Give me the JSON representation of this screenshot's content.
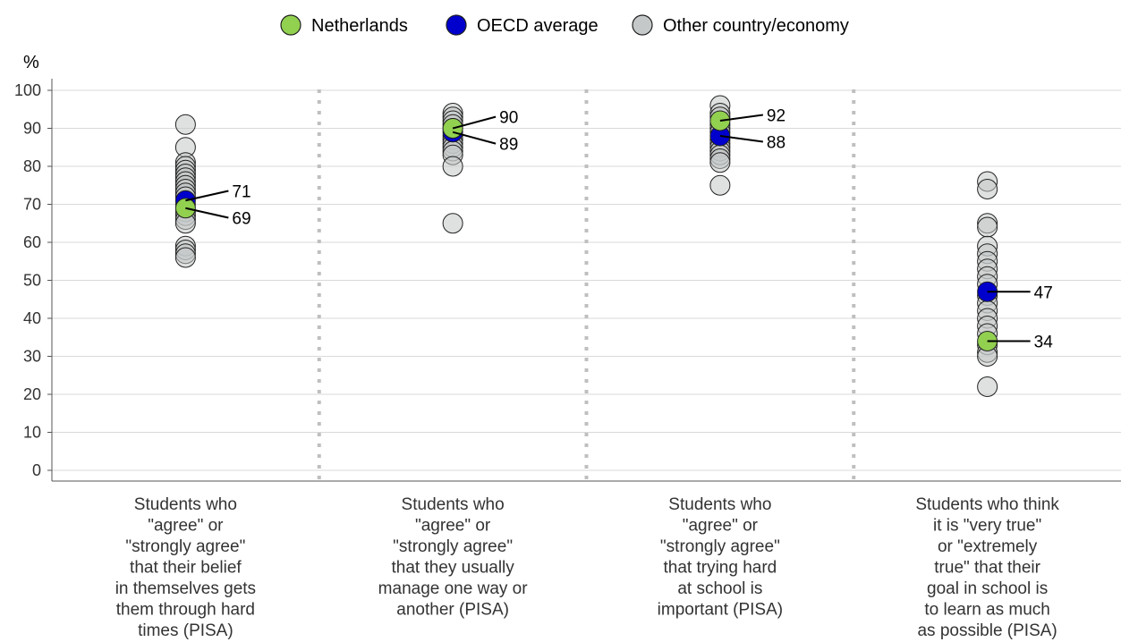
{
  "chart_data": {
    "type": "scatter",
    "y_unit_label": "%",
    "ylim": [
      0,
      100
    ],
    "yticks": [
      0,
      10,
      20,
      30,
      40,
      50,
      60,
      70,
      80,
      90,
      100
    ],
    "grid": true,
    "legend_position": "top-center",
    "legend": [
      {
        "label": "Netherlands",
        "color": "#92d050"
      },
      {
        "label": "OECD average",
        "color": "#0000cc"
      },
      {
        "label": "Other country/economy",
        "color": "#c4c8c8"
      }
    ],
    "categories": [
      {
        "label_lines": [
          "Students who",
          "\"agree\" or",
          "\"strongly agree\"",
          "that their belief",
          "in themselves gets",
          "them through hard",
          "times (PISA)"
        ],
        "netherlands": 69,
        "oecd_average": 71,
        "others": [
          91,
          85,
          81,
          80,
          79,
          78,
          77,
          76,
          75,
          74,
          73,
          72,
          70,
          68,
          67,
          66,
          65,
          59,
          58,
          57,
          56
        ]
      },
      {
        "label_lines": [
          "Students who",
          "\"agree\" or",
          "\"strongly agree\"",
          "that they usually",
          "manage one way or",
          "another (PISA)"
        ],
        "netherlands": 90,
        "oecd_average": 89,
        "others": [
          94,
          93,
          92,
          91,
          90,
          88,
          87,
          86,
          85,
          84,
          83,
          80,
          65
        ]
      },
      {
        "label_lines": [
          "Students who",
          "\"agree\" or",
          "\"strongly agree\"",
          "that trying hard",
          "at school is",
          "important (PISA)"
        ],
        "netherlands": 92,
        "oecd_average": 88,
        "others": [
          96,
          94,
          93,
          91,
          90,
          89,
          87,
          86,
          85,
          84,
          83,
          82,
          81,
          75
        ]
      },
      {
        "label_lines": [
          "Students who think",
          "it is \"very true\"",
          "or \"extremely",
          "true\" that their",
          "goal in school is",
          "to learn as much",
          "as possible (PISA)"
        ],
        "netherlands": 34,
        "oecd_average": 47,
        "others": [
          76,
          74,
          65,
          64,
          59,
          57,
          55,
          53,
          51,
          49,
          46,
          44,
          42,
          40,
          38,
          36,
          33,
          31,
          30,
          22
        ]
      }
    ]
  }
}
